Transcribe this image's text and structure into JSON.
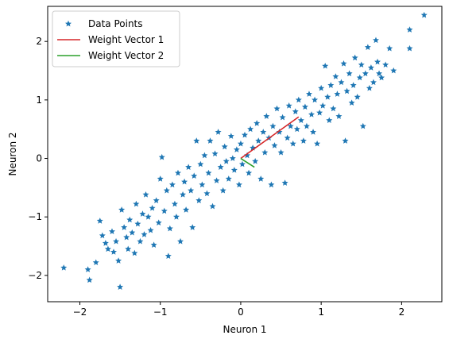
{
  "chart_data": {
    "type": "scatter",
    "xlabel": "Neuron 1",
    "ylabel": "Neuron 2",
    "xlim": [
      -2.4,
      2.5
    ],
    "ylim": [
      -2.45,
      2.6
    ],
    "xticks": [
      -2,
      -1,
      0,
      1,
      2
    ],
    "yticks": [
      -2,
      -1,
      0,
      1,
      2
    ],
    "xtick_labels": [
      "−2",
      "−1",
      "0",
      "1",
      "2"
    ],
    "ytick_labels": [
      "−2",
      "−1",
      "0",
      "1",
      "2"
    ],
    "grid": false,
    "legend_position": "top-left",
    "series": [
      {
        "name": "Data Points",
        "kind": "scatter",
        "marker": "star",
        "color": "#1f77b4",
        "points": [
          [
            -2.2,
            -1.87
          ],
          [
            -1.9,
            -1.9
          ],
          [
            -1.88,
            -2.08
          ],
          [
            -1.8,
            -1.78
          ],
          [
            -1.75,
            -1.07
          ],
          [
            -1.72,
            -1.32
          ],
          [
            -1.68,
            -1.45
          ],
          [
            -1.65,
            -1.55
          ],
          [
            -1.6,
            -1.25
          ],
          [
            -1.58,
            -1.6
          ],
          [
            -1.55,
            -1.42
          ],
          [
            -1.52,
            -1.75
          ],
          [
            -1.5,
            -2.2
          ],
          [
            -1.48,
            -0.88
          ],
          [
            -1.45,
            -1.18
          ],
          [
            -1.42,
            -1.35
          ],
          [
            -1.4,
            -1.55
          ],
          [
            -1.38,
            -1.05
          ],
          [
            -1.35,
            -1.27
          ],
          [
            -1.32,
            -1.62
          ],
          [
            -1.3,
            -0.78
          ],
          [
            -1.28,
            -1.12
          ],
          [
            -1.25,
            -1.42
          ],
          [
            -1.22,
            -0.95
          ],
          [
            -1.2,
            -1.3
          ],
          [
            -1.18,
            -0.62
          ],
          [
            -1.15,
            -1.0
          ],
          [
            -1.12,
            -1.23
          ],
          [
            -1.1,
            -0.85
          ],
          [
            -1.08,
            -1.48
          ],
          [
            -1.05,
            -0.72
          ],
          [
            -1.02,
            -1.1
          ],
          [
            -1.0,
            -0.35
          ],
          [
            -0.98,
            0.02
          ],
          [
            -0.95,
            -0.9
          ],
          [
            -0.92,
            -0.55
          ],
          [
            -0.9,
            -1.67
          ],
          [
            -0.88,
            -1.2
          ],
          [
            -0.85,
            -0.45
          ],
          [
            -0.82,
            -0.78
          ],
          [
            -0.8,
            -1.0
          ],
          [
            -0.78,
            -0.25
          ],
          [
            -0.75,
            -1.42
          ],
          [
            -0.72,
            -0.62
          ],
          [
            -0.7,
            -0.4
          ],
          [
            -0.68,
            -0.88
          ],
          [
            -0.65,
            -0.15
          ],
          [
            -0.62,
            -0.55
          ],
          [
            -0.6,
            -1.18
          ],
          [
            -0.58,
            -0.3
          ],
          [
            -0.55,
            0.3
          ],
          [
            -0.52,
            -0.72
          ],
          [
            -0.5,
            -0.1
          ],
          [
            -0.48,
            -0.45
          ],
          [
            -0.45,
            0.05
          ],
          [
            -0.42,
            -0.6
          ],
          [
            -0.4,
            -0.25
          ],
          [
            -0.38,
            0.3
          ],
          [
            -0.35,
            -0.82
          ],
          [
            -0.32,
            0.08
          ],
          [
            -0.3,
            -0.38
          ],
          [
            -0.28,
            0.45
          ],
          [
            -0.25,
            -0.15
          ],
          [
            -0.22,
            -0.55
          ],
          [
            -0.2,
            0.2
          ],
          [
            -0.18,
            -0.05
          ],
          [
            -0.15,
            -0.35
          ],
          [
            -0.12,
            0.38
          ],
          [
            -0.1,
            0.0
          ],
          [
            -0.08,
            -0.2
          ],
          [
            -0.05,
            0.15
          ],
          [
            -0.02,
            -0.45
          ],
          [
            0.0,
            0.25
          ],
          [
            0.02,
            -0.1
          ],
          [
            0.05,
            0.4
          ],
          [
            0.08,
            0.05
          ],
          [
            0.1,
            -0.25
          ],
          [
            0.12,
            0.5
          ],
          [
            0.15,
            0.18
          ],
          [
            0.18,
            -0.05
          ],
          [
            0.2,
            0.6
          ],
          [
            0.22,
            0.3
          ],
          [
            0.25,
            -0.35
          ],
          [
            0.28,
            0.45
          ],
          [
            0.3,
            0.1
          ],
          [
            0.32,
            0.72
          ],
          [
            0.35,
            0.35
          ],
          [
            0.38,
            -0.45
          ],
          [
            0.4,
            0.55
          ],
          [
            0.42,
            0.22
          ],
          [
            0.45,
            0.85
          ],
          [
            0.48,
            0.45
          ],
          [
            0.5,
            0.1
          ],
          [
            0.52,
            0.7
          ],
          [
            0.55,
            -0.42
          ],
          [
            0.58,
            0.35
          ],
          [
            0.6,
            0.9
          ],
          [
            0.62,
            0.55
          ],
          [
            0.65,
            0.25
          ],
          [
            0.68,
            0.8
          ],
          [
            0.7,
            0.5
          ],
          [
            0.72,
            1.0
          ],
          [
            0.75,
            0.65
          ],
          [
            0.78,
            0.3
          ],
          [
            0.8,
            0.88
          ],
          [
            0.82,
            0.55
          ],
          [
            0.85,
            1.1
          ],
          [
            0.88,
            0.75
          ],
          [
            0.9,
            0.45
          ],
          [
            0.92,
            1.0
          ],
          [
            0.95,
            0.25
          ],
          [
            0.98,
            0.78
          ],
          [
            1.0,
            1.2
          ],
          [
            1.02,
            0.9
          ],
          [
            1.05,
            1.58
          ],
          [
            1.08,
            1.05
          ],
          [
            1.1,
            0.65
          ],
          [
            1.12,
            1.25
          ],
          [
            1.15,
            0.85
          ],
          [
            1.18,
            1.4
          ],
          [
            1.2,
            1.1
          ],
          [
            1.22,
            0.72
          ],
          [
            1.25,
            1.3
          ],
          [
            1.28,
            1.62
          ],
          [
            1.3,
            0.3
          ],
          [
            1.32,
            1.15
          ],
          [
            1.35,
            1.45
          ],
          [
            1.38,
            0.95
          ],
          [
            1.4,
            1.25
          ],
          [
            1.42,
            1.72
          ],
          [
            1.45,
            1.05
          ],
          [
            1.48,
            1.38
          ],
          [
            1.5,
            1.6
          ],
          [
            1.52,
            0.55
          ],
          [
            1.55,
            1.45
          ],
          [
            1.58,
            1.9
          ],
          [
            1.6,
            1.2
          ],
          [
            1.62,
            1.55
          ],
          [
            1.65,
            1.3
          ],
          [
            1.68,
            2.02
          ],
          [
            1.7,
            1.65
          ],
          [
            1.72,
            1.45
          ],
          [
            1.75,
            1.38
          ],
          [
            1.8,
            1.6
          ],
          [
            1.85,
            1.88
          ],
          [
            1.9,
            1.5
          ],
          [
            2.1,
            2.2
          ],
          [
            2.1,
            1.88
          ],
          [
            2.28,
            2.45
          ]
        ]
      },
      {
        "name": "Weight Vector 1",
        "kind": "line",
        "color": "#d62728",
        "x": [
          0,
          0.72
        ],
        "y": [
          0,
          0.71
        ]
      },
      {
        "name": "Weight Vector 2",
        "kind": "line",
        "color": "#2ca02c",
        "x": [
          0,
          0.17
        ],
        "y": [
          0,
          -0.15
        ]
      }
    ]
  }
}
